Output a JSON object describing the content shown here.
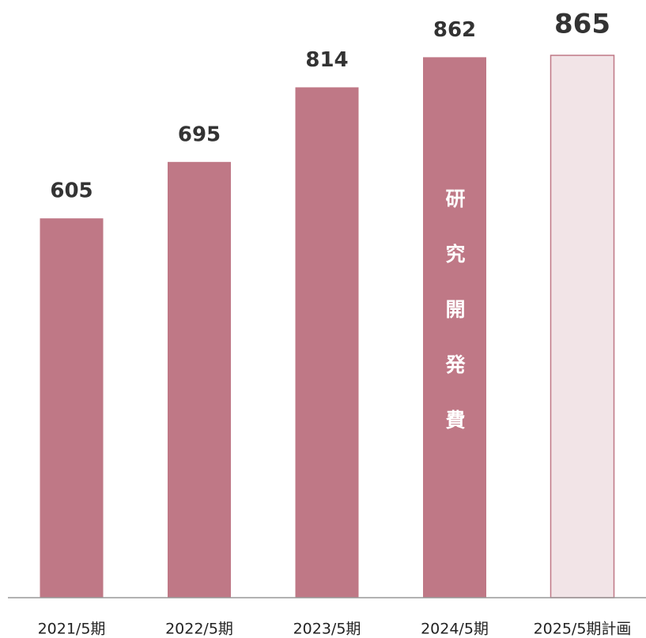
{
  "chart_data": {
    "type": "bar",
    "annotation": "研究開発費",
    "categories": [
      "2021/5期",
      "2022/5期",
      "2023/5期",
      "2024/5期",
      "2025/5期計画"
    ],
    "values": [
      605,
      695,
      814,
      862,
      865
    ],
    "colors": [
      "#bf7886",
      "#bf7886",
      "#bf7886",
      "#bf7886",
      "#f2e4e7"
    ],
    "edgecolor": "#bf7886",
    "ylim": [
      0,
      865
    ],
    "grid": false
  }
}
